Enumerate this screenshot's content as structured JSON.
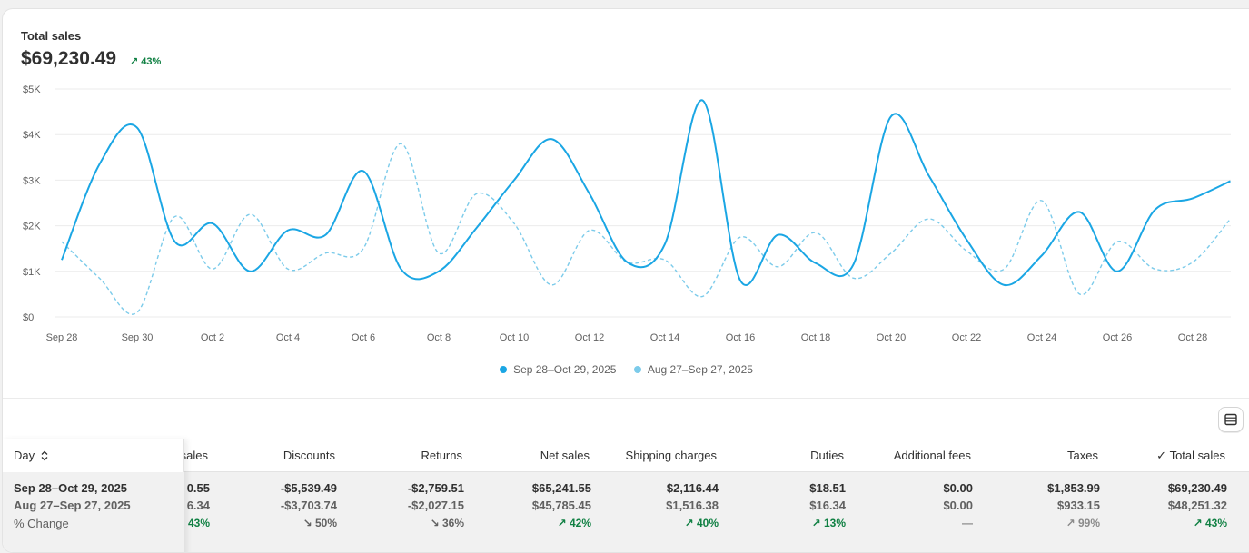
{
  "metric": {
    "title": "Total sales",
    "value": "$69,230.49",
    "change": "43%"
  },
  "colors": {
    "current": "#1aa6e4",
    "previous": "#7ccbea",
    "up": "#108043"
  },
  "chart_data": {
    "type": "line",
    "ylim": [
      0,
      5000
    ],
    "y_ticks": [
      "$0",
      "$1K",
      "$2K",
      "$3K",
      "$4K",
      "$5K"
    ],
    "y_tick_values": [
      0,
      1000,
      2000,
      3000,
      4000,
      5000
    ],
    "x_tick_labels": [
      "Sep 28",
      "Sep 30",
      "Oct 2",
      "Oct 4",
      "Oct 6",
      "Oct 8",
      "Oct 10",
      "Oct 12",
      "Oct 14",
      "Oct 16",
      "Oct 18",
      "Oct 20",
      "Oct 22",
      "Oct 24",
      "Oct 26",
      "Oct 28"
    ],
    "x_tick_index": [
      0,
      2,
      4,
      6,
      8,
      10,
      12,
      14,
      16,
      18,
      20,
      22,
      24,
      26,
      28,
      30
    ],
    "grid": true,
    "legend_position": "bottom",
    "series": [
      {
        "name": "Sep 28–Oct 29, 2025",
        "style": "solid",
        "values": [
          1250,
          3350,
          4150,
          1650,
          2050,
          1000,
          1900,
          1800,
          3200,
          1050,
          1000,
          1950,
          3000,
          3900,
          2700,
          1200,
          1600,
          4750,
          800,
          1800,
          1180,
          1150,
          4400,
          3100,
          1700,
          700,
          1350,
          2300,
          1000,
          2350,
          2600,
          2980
        ]
      },
      {
        "name": "Aug 27–Sep 27, 2025",
        "style": "dashed",
        "values": [
          1650,
          850,
          100,
          2200,
          1050,
          2250,
          1050,
          1400,
          1500,
          3800,
          1400,
          2700,
          2050,
          700,
          1900,
          1200,
          1250,
          450,
          1750,
          1100,
          1850,
          850,
          1400,
          2150,
          1450,
          1050,
          2550,
          500,
          1650,
          1050,
          1200,
          2150
        ]
      }
    ]
  },
  "table": {
    "day_header": "Day",
    "columns": [
      "sales",
      "Discounts",
      "Returns",
      "Net sales",
      "Shipping charges",
      "Duties",
      "Additional fees",
      "Taxes",
      "Total sales"
    ],
    "row_labels": [
      "Sep 28–Oct 29, 2025",
      "Aug 27–Sep 27, 2025",
      "% Change"
    ],
    "rows": [
      [
        "0.55",
        "-$5,539.49",
        "-$2,759.51",
        "$65,241.55",
        "$2,116.44",
        "$18.51",
        "$0.00",
        "$1,853.99",
        "$69,230.49"
      ],
      [
        "6.34",
        "-$3,703.74",
        "-$2,027.15",
        "$45,785.45",
        "$1,516.38",
        "$16.34",
        "$0.00",
        "$933.15",
        "$48,251.32"
      ]
    ],
    "changes": [
      {
        "text": "43%",
        "dir": "up"
      },
      {
        "text": "50%",
        "dir": "down"
      },
      {
        "text": "36%",
        "dir": "down"
      },
      {
        "text": "42%",
        "dir": "up"
      },
      {
        "text": "40%",
        "dir": "up"
      },
      {
        "text": "13%",
        "dir": "up"
      },
      {
        "text": "—",
        "dir": "none"
      },
      {
        "text": "99%",
        "dir": "upmuted"
      },
      {
        "text": "43%",
        "dir": "up"
      }
    ]
  }
}
